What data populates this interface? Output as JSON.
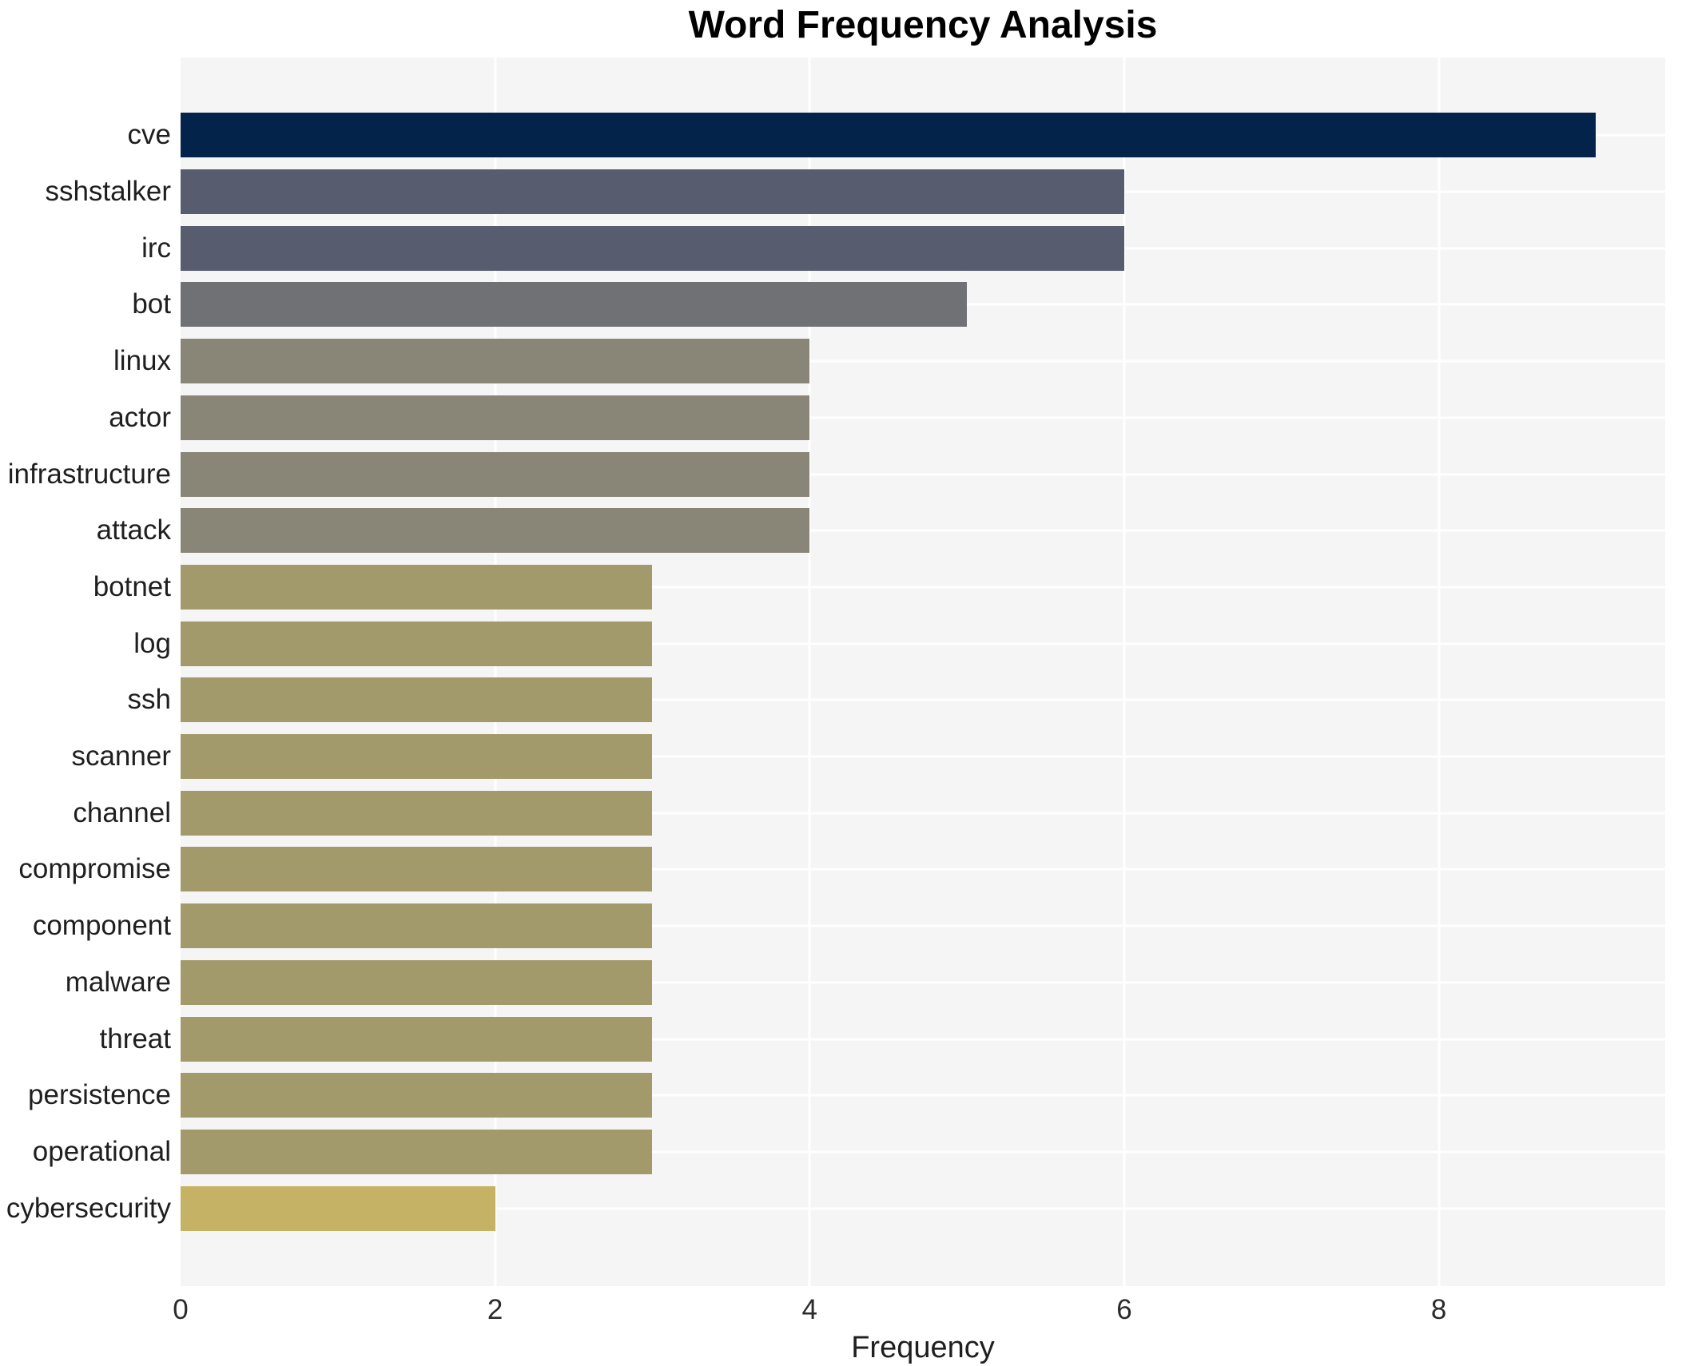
{
  "chart_data": {
    "type": "bar",
    "orientation": "horizontal",
    "title": "Word Frequency Analysis",
    "xlabel": "Frequency",
    "ylabel": "",
    "categories": [
      "cve",
      "sshstalker",
      "irc",
      "bot",
      "linux",
      "actor",
      "infrastructure",
      "attack",
      "botnet",
      "log",
      "ssh",
      "scanner",
      "channel",
      "compromise",
      "component",
      "malware",
      "threat",
      "persistence",
      "operational",
      "cybersecurity"
    ],
    "values": [
      9,
      6,
      6,
      5,
      4,
      4,
      4,
      4,
      3,
      3,
      3,
      3,
      3,
      3,
      3,
      3,
      3,
      3,
      3,
      2
    ],
    "bar_colors": [
      "#03234b",
      "#575d6f",
      "#575d6f",
      "#6f7175",
      "#898577",
      "#898577",
      "#898577",
      "#898577",
      "#a39a6b",
      "#a39a6b",
      "#a39a6b",
      "#a39a6b",
      "#a39a6b",
      "#a39a6b",
      "#a39a6b",
      "#a39a6b",
      "#a39a6b",
      "#a39a6b",
      "#a39a6b",
      "#c5b264"
    ],
    "xlim": [
      0,
      9.44
    ],
    "x_ticks": [
      "0",
      "2",
      "4",
      "6",
      "8"
    ],
    "x_tick_values": [
      0,
      2,
      4,
      6,
      8
    ],
    "grid": true,
    "legend": "none",
    "plot_background": "#f5f5f6",
    "grid_color": "#ffffff",
    "figure_background": "#ffffff"
  }
}
